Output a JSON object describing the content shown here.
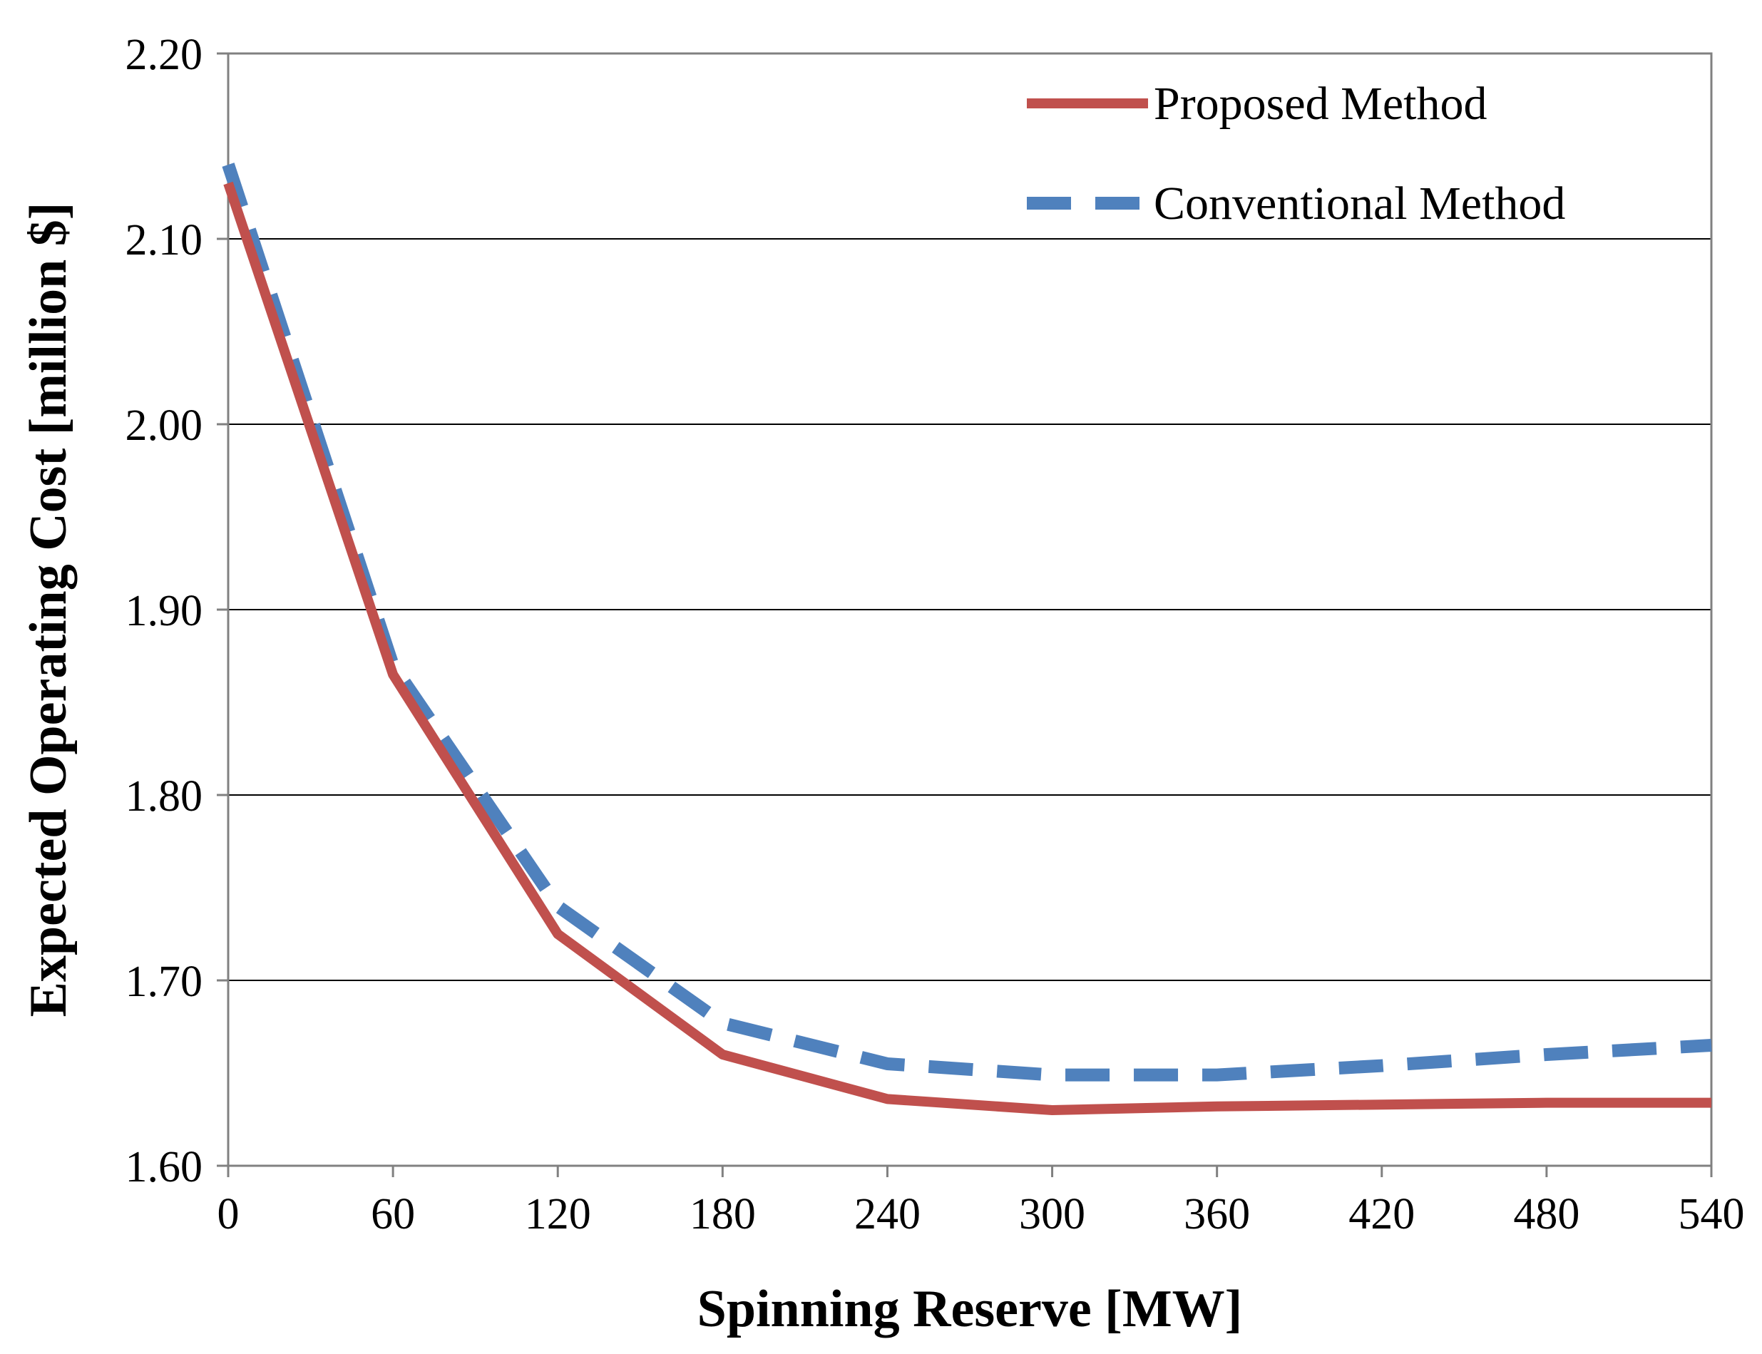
{
  "chart_data": {
    "type": "line",
    "title": "",
    "xlabel": "Spinning Reserve [MW]",
    "ylabel": "Expected Operating Cost [million $]",
    "x": [
      0,
      60,
      120,
      180,
      240,
      300,
      360,
      420,
      480,
      540
    ],
    "xticks": [
      "0",
      "60",
      "120",
      "180",
      "240",
      "300",
      "360",
      "420",
      "480",
      "540"
    ],
    "yticks": [
      "1.60",
      "1.70",
      "1.80",
      "1.90",
      "2.00",
      "2.10",
      "2.20"
    ],
    "ytick_values": [
      1.6,
      1.7,
      1.8,
      1.9,
      2.0,
      2.1,
      2.2
    ],
    "xlim": [
      0,
      540
    ],
    "ylim": [
      1.6,
      2.2
    ],
    "grid": "horizontal",
    "legend_position": "top-right",
    "series": [
      {
        "name": "Proposed Method",
        "style": "solid",
        "color": "#C0504D",
        "values": [
          2.13,
          1.865,
          1.725,
          1.66,
          1.636,
          1.63,
          1.632,
          1.633,
          1.634,
          1.634
        ]
      },
      {
        "name": "Conventional Method",
        "style": "dashed",
        "color": "#4F81BD",
        "values": [
          2.14,
          1.87,
          1.74,
          1.677,
          1.655,
          1.649,
          1.649,
          1.654,
          1.66,
          1.665
        ]
      }
    ]
  }
}
